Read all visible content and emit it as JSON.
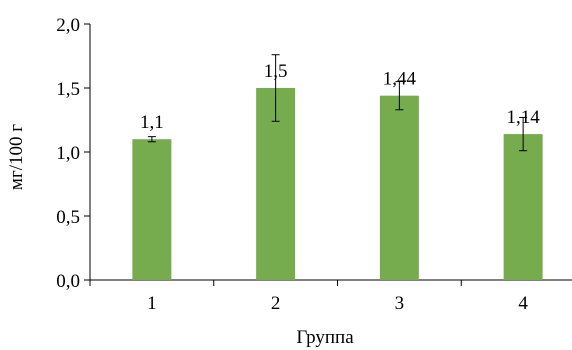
{
  "chart_data": {
    "type": "bar",
    "title": "",
    "xlabel": "Группа",
    "ylabel": "мг/100 г",
    "categories": [
      "1",
      "2",
      "3",
      "4"
    ],
    "values": [
      1.1,
      1.5,
      1.44,
      1.14
    ],
    "value_labels": [
      "1,1",
      "1,5",
      "1,44",
      "1,14"
    ],
    "error_low": [
      1.08,
      1.24,
      1.33,
      1.01
    ],
    "error_high": [
      1.12,
      1.76,
      1.55,
      1.27
    ],
    "ylim": [
      0,
      2
    ],
    "yticks": [
      0,
      0.5,
      1,
      1.5,
      2
    ],
    "ytick_labels": [
      "0,0",
      "0,5",
      "1,0",
      "1,5",
      "2,0"
    ],
    "grid": false,
    "legend": "none",
    "bar_color": "#77ac4e"
  }
}
